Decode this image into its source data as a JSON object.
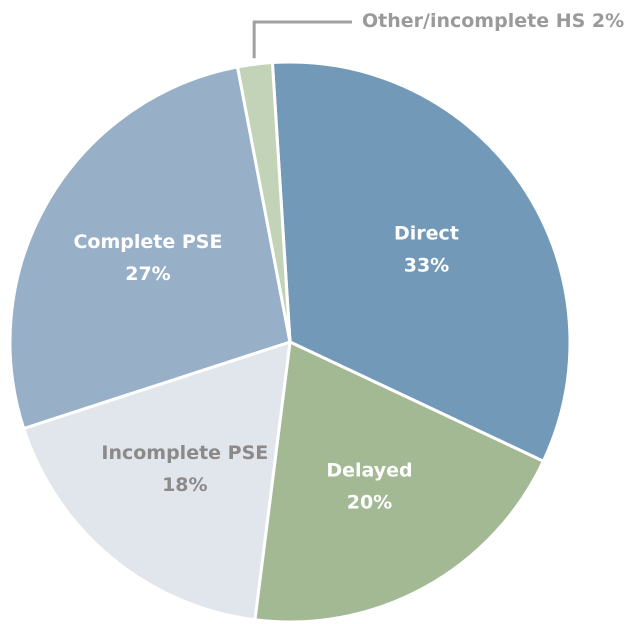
{
  "chart_data": {
    "type": "pie",
    "categories": [
      "Direct",
      "Delayed",
      "Incomplete PSE",
      "Complete PSE",
      "Other/incomplete HS"
    ],
    "values": [
      33,
      20,
      18,
      27,
      2
    ],
    "value_labels": [
      "33%",
      "20%",
      "18%",
      "27%",
      "2%"
    ],
    "colors": [
      "#7399b8",
      "#a2b994",
      "#e1e5ec",
      "#98afc8",
      "#c3d3b7"
    ],
    "label_colors": [
      "#ffffff",
      "#ffffff",
      "#8a8a8a",
      "#ffffff",
      "#9a9a9a"
    ]
  }
}
